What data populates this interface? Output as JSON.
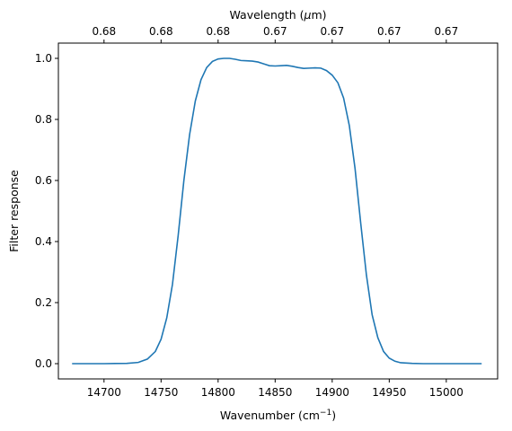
{
  "chart_data": {
    "type": "line",
    "title": "",
    "xlabel": "Wavenumber (cm",
    "xlabel_sup": "−1",
    "xlabel_end": ")",
    "ylabel": "Filter response",
    "top_xlabel": "Wavelength (",
    "top_xlabel_mu": "μ",
    "top_xlabel_end": "m)",
    "xlim": [
      14660,
      15045
    ],
    "ylim": [
      -0.05,
      1.05
    ],
    "x_ticks": [
      14700,
      14750,
      14800,
      14850,
      14900,
      14950,
      15000
    ],
    "x_tick_labels": [
      "14700",
      "14750",
      "14800",
      "14850",
      "14900",
      "14950",
      "15000"
    ],
    "y_ticks": [
      0.0,
      0.2,
      0.4,
      0.6,
      0.8,
      1.0
    ],
    "y_tick_labels": [
      "0.0",
      "0.2",
      "0.4",
      "0.6",
      "0.8",
      "1.0"
    ],
    "top_ticks": [
      14700,
      14750,
      14800,
      14850,
      14900,
      14950,
      15000
    ],
    "top_tick_labels": [
      "0.68",
      "0.68",
      "0.68",
      "0.67",
      "0.67",
      "0.67",
      "0.67"
    ],
    "grid": false,
    "line_color": "#1f77b4",
    "series": [
      {
        "x": [
          14672,
          14700,
          14720,
          14730,
          14738,
          14745,
          14750,
          14755,
          14760,
          14765,
          14770,
          14775,
          14780,
          14785,
          14790,
          14795,
          14800,
          14805,
          14810,
          14815,
          14820,
          14825,
          14830,
          14835,
          14840,
          14845,
          14850,
          14855,
          14860,
          14865,
          14870,
          14875,
          14880,
          14885,
          14890,
          14895,
          14900,
          14905,
          14910,
          14915,
          14920,
          14925,
          14930,
          14935,
          14940,
          14945,
          14950,
          14955,
          14960,
          14970,
          14980,
          15000,
          15031
        ],
        "y": [
          0.0,
          0.0,
          0.001,
          0.004,
          0.015,
          0.04,
          0.08,
          0.15,
          0.26,
          0.42,
          0.6,
          0.75,
          0.86,
          0.93,
          0.97,
          0.99,
          0.998,
          1.0,
          1.0,
          0.997,
          0.993,
          0.992,
          0.991,
          0.988,
          0.982,
          0.976,
          0.975,
          0.976,
          0.977,
          0.974,
          0.97,
          0.967,
          0.968,
          0.969,
          0.968,
          0.96,
          0.945,
          0.92,
          0.87,
          0.78,
          0.64,
          0.46,
          0.29,
          0.16,
          0.085,
          0.04,
          0.018,
          0.008,
          0.003,
          0.001,
          0.0,
          0.0,
          0.0
        ]
      }
    ]
  }
}
